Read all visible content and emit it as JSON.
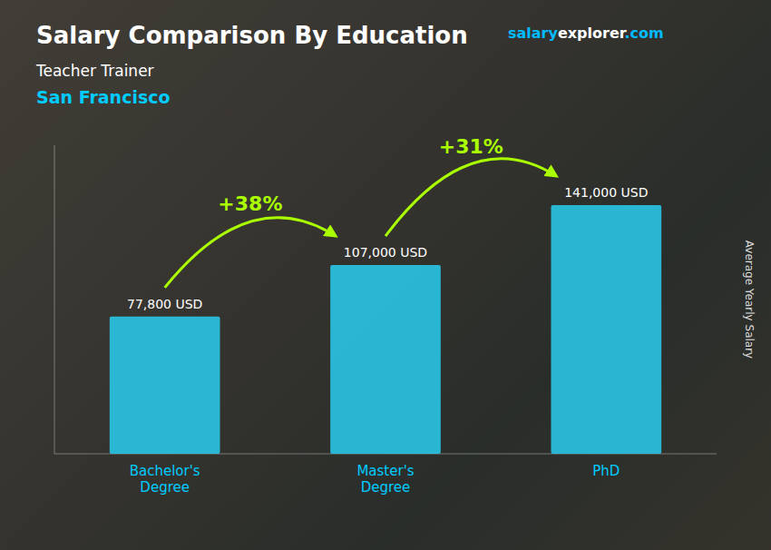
{
  "chart_data": {
    "type": "bar",
    "title": "Salary Comparison By Education",
    "subtitle": [
      "Teacher Trainer",
      "San Francisco"
    ],
    "ylabel": "Average Yearly Salary",
    "categories": [
      "Bachelor's\nDegree",
      "Master's\nDegree",
      "PhD"
    ],
    "values": [
      77800,
      107000,
      141000
    ],
    "value_labels": [
      "77,800 USD",
      "107,000 USD",
      "141,000 USD"
    ],
    "data_labels": true,
    "color": "#29c5e6",
    "ylim": [
      0,
      175000
    ],
    "tick_labels": false,
    "grid": false,
    "annotations": [
      "+38%",
      "+31%"
    ],
    "watermark": [
      "salary",
      "explorer",
      ".com"
    ]
  }
}
